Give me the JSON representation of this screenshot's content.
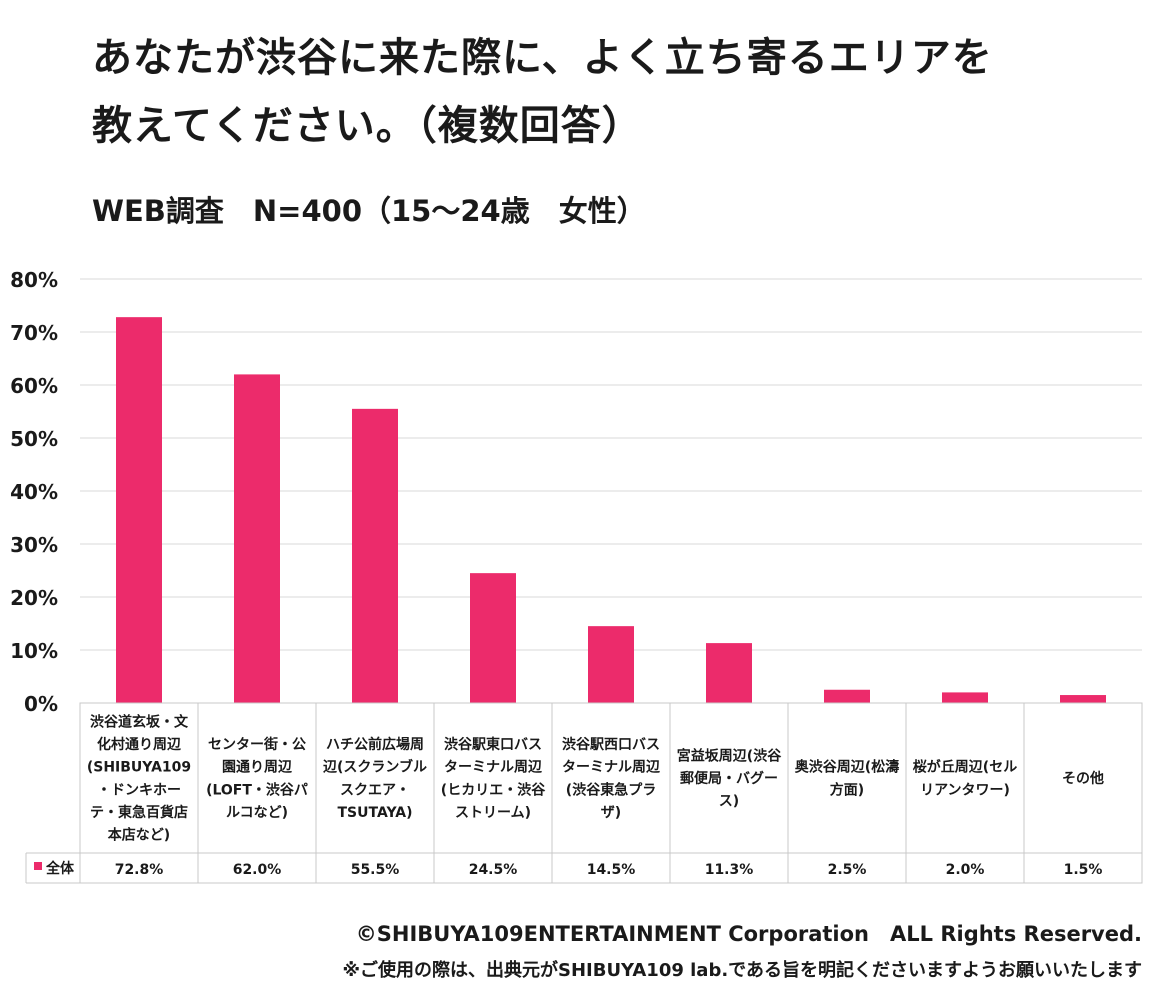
{
  "title_line1": "あなたが渋谷に来た際に、よく立ち寄るエリアを",
  "title_line2": "教えてください。（複数回答）",
  "subtitle": "WEB調査　N=400（15～24歳　女性）",
  "footer": {
    "copyright": "©SHIBUYA109ENTERTAINMENT Corporation　ALL Rights Reserved.",
    "note": "※ご使用の際は、出典元がSHIBUYA109 lab.である旨を明記くださいますようお願いいたします"
  },
  "colors": {
    "bar": "#EC2B6B",
    "grid": "#d9d9d9",
    "table_border": "#c8c8c8"
  },
  "chart_data": {
    "type": "bar",
    "ylim": [
      0,
      80
    ],
    "yticks": [
      "0%",
      "10%",
      "20%",
      "30%",
      "40%",
      "50%",
      "60%",
      "70%",
      "80%"
    ],
    "categories": [
      [
        "渋谷道玄坂・文",
        "化村通り周辺",
        "(SHIBUYA109",
        "・ドンキホー",
        "テ・東急百貨店",
        "本店など)"
      ],
      [
        "センター街・公",
        "園通り周辺",
        "(LOFT・渋谷パ",
        "ルコなど)"
      ],
      [
        "ハチ公前広場周",
        "辺(スクランブル",
        "スクエア・",
        "TSUTAYA)"
      ],
      [
        "渋谷駅東口バス",
        "ターミナル周辺",
        "(ヒカリエ・渋谷",
        "ストリーム)"
      ],
      [
        "渋谷駅西口バス",
        "ターミナル周辺",
        "(渋谷東急プラ",
        "ザ)"
      ],
      [
        "宮益坂周辺(渋谷",
        "郵便局・バグー",
        "ス)"
      ],
      [
        "奥渋谷周辺(松濤",
        "方面)"
      ],
      [
        "桜が丘周辺(セル",
        "リアンタワー)"
      ],
      [
        "その他"
      ]
    ],
    "series": [
      {
        "name": "全体",
        "values": [
          72.8,
          62.0,
          55.5,
          24.5,
          14.5,
          11.3,
          2.5,
          2.0,
          1.5
        ],
        "labels": [
          "72.8%",
          "62.0%",
          "55.5%",
          "24.5%",
          "14.5%",
          "11.3%",
          "2.5%",
          "2.0%",
          "1.5%"
        ]
      }
    ],
    "grid": true,
    "legend": "data-table"
  }
}
